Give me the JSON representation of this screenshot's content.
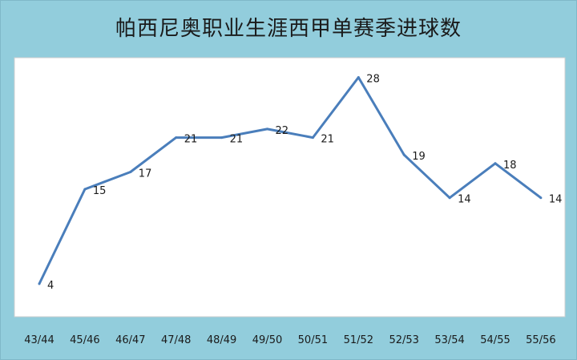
{
  "chart_data": {
    "type": "line",
    "title": "帕西尼奥职业生涯西甲单赛季进球数",
    "categories": [
      "43/44",
      "45/46",
      "46/47",
      "47/48",
      "48/49",
      "49/50",
      "50/51",
      "51/52",
      "52/53",
      "53/54",
      "54/55",
      "55/56"
    ],
    "values": [
      4,
      15,
      17,
      21,
      21,
      22,
      21,
      28,
      19,
      14,
      18,
      14
    ],
    "ylim": [
      2,
      30
    ],
    "grid": false,
    "legend": "none",
    "colors": {
      "line": "#4A7EBB",
      "frame": "#92CDDC",
      "plot": "#FFFFFF",
      "text": "#1a1a1a"
    }
  }
}
